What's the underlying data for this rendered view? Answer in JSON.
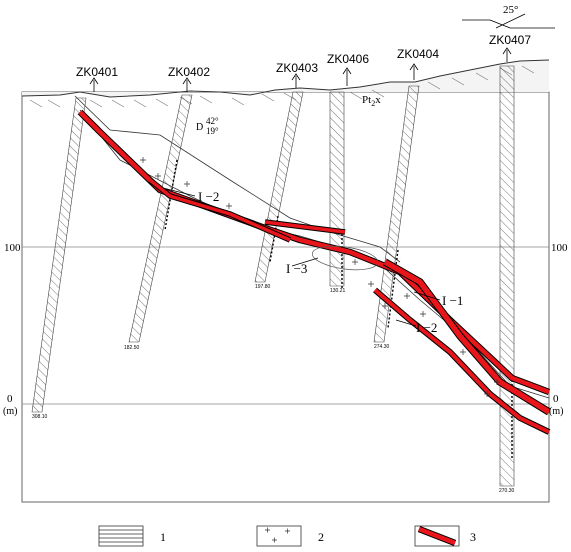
{
  "orientation": {
    "angle": "25°"
  },
  "boreholes": [
    {
      "id": "ZK0401"
    },
    {
      "id": "ZK0402"
    },
    {
      "id": "ZK0403"
    },
    {
      "id": "ZK0406"
    },
    {
      "id": "ZK0404"
    },
    {
      "id": "ZK0407"
    }
  ],
  "formation": {
    "label": "Pt",
    "sub": "2",
    "suffix": "x"
  },
  "dip_marker": {
    "letter": "D",
    "top": "42°",
    "bottom": "19°"
  },
  "depth_labels": {
    "zk0401": "308.10",
    "zk0402": "182.50",
    "zk0403": "197.80",
    "zk0406": "130.21",
    "zk0404": "274.30",
    "zk0407": "270.30"
  },
  "orebodies": {
    "upper": "I −2",
    "middle": "I −3",
    "right_upper": "I −1",
    "right_lower": "I −2"
  },
  "axis": {
    "left_100": "100",
    "left_0": "0",
    "left_unit": "(m)",
    "right_100": "100",
    "right_0": "0",
    "right_unit": "(m)"
  },
  "legend": [
    {
      "number": "1",
      "icon": "horizontal-hatch-pattern"
    },
    {
      "number": "2",
      "icon": "cross-pattern"
    },
    {
      "number": "3",
      "icon": "red-orebody-bar"
    }
  ],
  "colors": {
    "orebody": "#e8161b",
    "line": "#000000",
    "ground": "#cccccc"
  }
}
